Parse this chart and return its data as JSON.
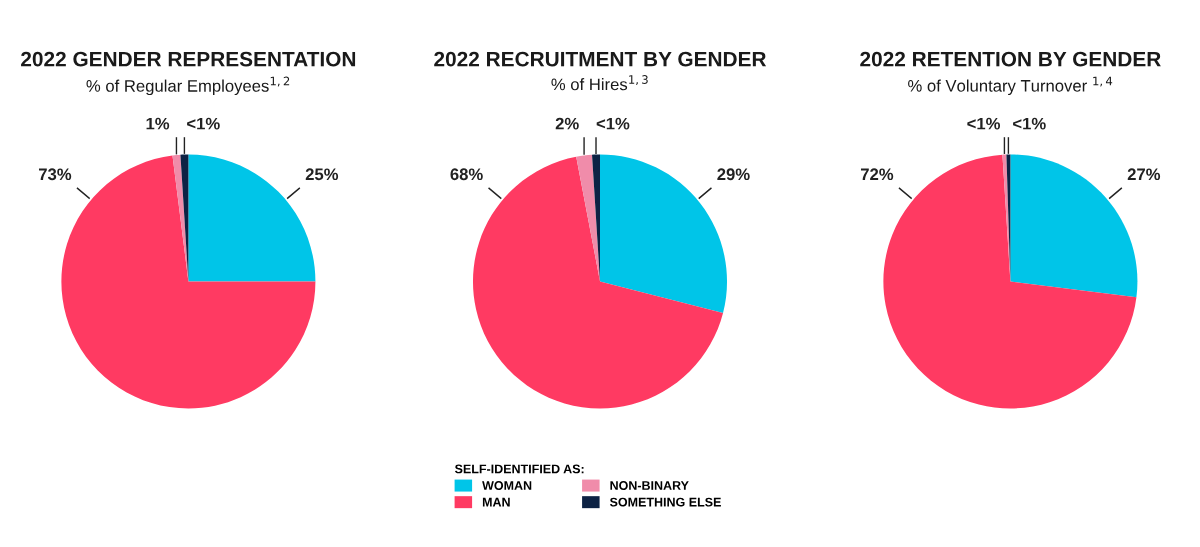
{
  "chart_data": [
    {
      "type": "pie",
      "title": "2022 GENDER REPRESENTATION",
      "subtitle": "% of Regular Employees$^{1,2}$",
      "values": [
        25,
        73,
        1,
        1
      ],
      "value_labels": [
        "25%",
        "73%",
        "1%",
        "<1%"
      ],
      "colors": [
        "#00c5e8",
        "#ff3a62",
        "#f08caa",
        "#0d2244"
      ],
      "legend": false
    },
    {
      "type": "pie",
      "title": "2022 RECRUITMENT BY GENDER",
      "subtitle": "% of Hires$^{1,3}$",
      "categories": [
        "WOMAN",
        "MAN",
        "NON-BINARY",
        "SOMETHING ELSE"
      ],
      "values": [
        29,
        68,
        2,
        1
      ],
      "value_labels": [
        "29%",
        "68%",
        "2%",
        "<1%"
      ],
      "colors": [
        "#00c5e8",
        "#ff3a62",
        "#f08caa",
        "#0d2244"
      ],
      "legend": "bottom",
      "legend_title": "SELF-IDENTIFIED AS:"
    },
    {
      "type": "pie",
      "title": "2022 RETENTION BY GENDER",
      "subtitle": "% of Voluntary Turnover $^{1,4}$",
      "values": [
        27,
        72,
        0.5,
        0.5
      ],
      "value_labels": [
        "27%",
        "72%",
        "<1%",
        "<1%"
      ],
      "colors": [
        "#00c5e8",
        "#ff3a62",
        "#f08caa",
        "#0d2244"
      ],
      "legend": false
    }
  ]
}
